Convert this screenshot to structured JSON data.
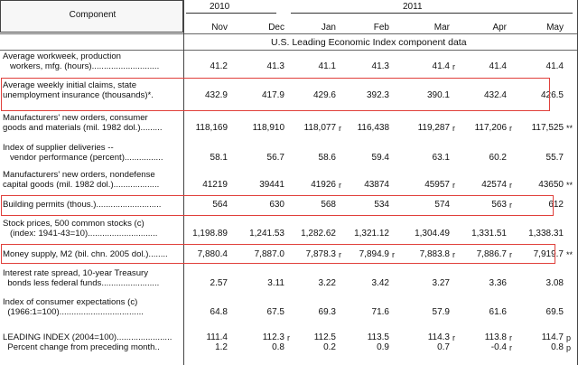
{
  "header": {
    "component_label": "Component",
    "year_2010": "2010",
    "year_2011": "2011",
    "months": [
      "Nov",
      "Dec",
      "Jan",
      "Feb",
      "Mar",
      "Apr",
      "May"
    ],
    "subtitle": "U.S. Leading Economic Index component data"
  },
  "rows": [
    {
      "label": [
        "Average workweek, production",
        "   workers, mfg. (hours)............................"
      ],
      "values": [
        "41.2",
        "41.3",
        "41.1",
        "41.3",
        "41.4",
        "41.4",
        "41.4"
      ],
      "flags": [
        "",
        "",
        "",
        "",
        "r",
        "",
        ""
      ]
    },
    {
      "label": [
        "Average weekly initial claims, state",
        "unemployment insurance (thousands)*."
      ],
      "values": [
        "432.9",
        "417.9",
        "429.6",
        "392.3",
        "390.1",
        "432.4",
        "426.5"
      ],
      "flags": [
        "",
        "",
        "",
        "",
        "",
        "",
        ""
      ]
    },
    {
      "label": [
        "Manufacturers' new orders, consumer",
        "goods and materials (mil. 1982 dol.)........."
      ],
      "values": [
        "118,169",
        "118,910",
        "118,077",
        "116,438",
        "119,287",
        "117,206",
        "117,525"
      ],
      "flags": [
        "",
        "",
        "r",
        "",
        "r",
        "r",
        "**"
      ]
    },
    {
      "label": [
        "Index of supplier deliveries --",
        "   vendor performance (percent)................"
      ],
      "values": [
        "58.1",
        "56.7",
        "58.6",
        "59.4",
        "63.1",
        "60.2",
        "55.7"
      ],
      "flags": [
        "",
        "",
        "",
        "",
        "",
        "",
        ""
      ]
    },
    {
      "label": [
        "Manufacturers' new orders, nondefense",
        "capital goods (mil. 1982 dol.)..................."
      ],
      "values": [
        "41219",
        "39441",
        "41926",
        "43874",
        "45957",
        "42574",
        "43650"
      ],
      "flags": [
        "",
        "",
        "r",
        "",
        "r",
        "r",
        "**"
      ]
    },
    {
      "label": [
        "Building permits (thous.)..........................."
      ],
      "values": [
        "564",
        "630",
        "568",
        "534",
        "574",
        "563",
        "612"
      ],
      "flags": [
        "",
        "",
        "",
        "",
        "",
        "r",
        ""
      ]
    },
    {
      "label": [
        "Stock prices, 500 common stocks (c)",
        "   (index: 1941-43=10)............................."
      ],
      "values": [
        "1,198.89",
        "1,241.53",
        "1,282.62",
        "1,321.12",
        "1,304.49",
        "1,331.51",
        "1,338.31"
      ],
      "flags": [
        "",
        "",
        "",
        "",
        "",
        "",
        ""
      ]
    },
    {
      "label": [
        "Money supply, M2 (bil. chn. 2005 dol.)........"
      ],
      "values": [
        "7,880.4",
        "7,887.0",
        "7,878.3",
        "7,894.9",
        "7,883.8",
        "7,886.7",
        "7,919.7"
      ],
      "flags": [
        "",
        "",
        "r",
        "r",
        "r",
        "r",
        "**"
      ]
    },
    {
      "label": [
        "Interest rate spread, 10-year Treasury",
        "  bonds less federal funds........................"
      ],
      "values": [
        "2.57",
        "3.11",
        "3.22",
        "3.42",
        "3.27",
        "3.36",
        "3.08"
      ],
      "flags": [
        "",
        "",
        "",
        "",
        "",
        "",
        ""
      ]
    },
    {
      "label": [
        "Index of consumer expectations (c)",
        "  (1966:1=100)..................................."
      ],
      "values": [
        "64.8",
        "67.5",
        "69.3",
        "71.6",
        "57.9",
        "61.6",
        "69.5"
      ],
      "flags": [
        "",
        "",
        "",
        "",
        "",
        "",
        ""
      ]
    },
    {
      "label": [
        "LEADING INDEX (2004=100)......................."
      ],
      "values": [
        "111.4",
        "112.3",
        "112.5",
        "113.5",
        "114.3",
        "113.8",
        "114.7"
      ],
      "flags": [
        "",
        "r",
        "",
        "",
        "r",
        "r",
        "p"
      ]
    },
    {
      "label": [
        "  Percent change from preceding month.."
      ],
      "values": [
        "1.2",
        "0.8",
        "0.2",
        "0.9",
        "0.7",
        "-0.4",
        "0.8"
      ],
      "flags": [
        "",
        "",
        "",
        "",
        "",
        "r",
        "p"
      ]
    }
  ]
}
